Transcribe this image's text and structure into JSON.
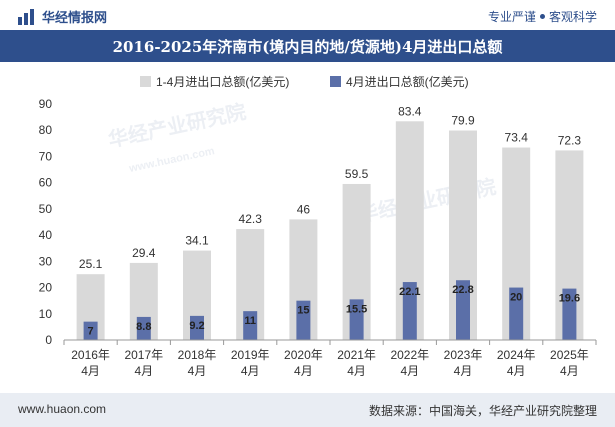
{
  "header": {
    "brand_name": "华经情报网",
    "tagline_left": "专业严谨",
    "tagline_right": "客观科学",
    "logo_icon": "bar-chart-logo-icon"
  },
  "title": "2016-2025年济南市(境内目的地/货源地)4月进出口总额",
  "watermarks": {
    "text1": "华经产业研究院",
    "text2": "www.huaon.com"
  },
  "footer": {
    "website": "www.huaon.com",
    "source": "数据来源：中国海关，华经产业研究院整理"
  },
  "colors": {
    "series1": "#d9d9d9",
    "series2": "#5b6fa8",
    "accent": "#2e4f8c"
  },
  "chart_data": {
    "type": "bar",
    "categories": [
      "2016年\n4月",
      "2017年\n4月",
      "2018年\n4月",
      "2019年\n4月",
      "2020年\n4月",
      "2021年\n4月",
      "2022年\n4月",
      "2023年\n4月",
      "2024年\n4月",
      "2025年\n4月"
    ],
    "series": [
      {
        "name": "1-4月进出口总额(亿美元)",
        "values": [
          25.1,
          29.4,
          34.1,
          42.3,
          46,
          59.5,
          83.4,
          79.9,
          73.4,
          72.3
        ]
      },
      {
        "name": "4月进出口总额(亿美元)",
        "values": [
          7,
          8.8,
          9.2,
          11,
          15,
          15.5,
          22.1,
          22.8,
          20,
          19.6
        ]
      }
    ],
    "ylim": [
      0,
      90
    ],
    "yticks": [
      0,
      10,
      20,
      30,
      40,
      50,
      60,
      70,
      80,
      90
    ],
    "legend_position": "top-left",
    "grid": false
  }
}
